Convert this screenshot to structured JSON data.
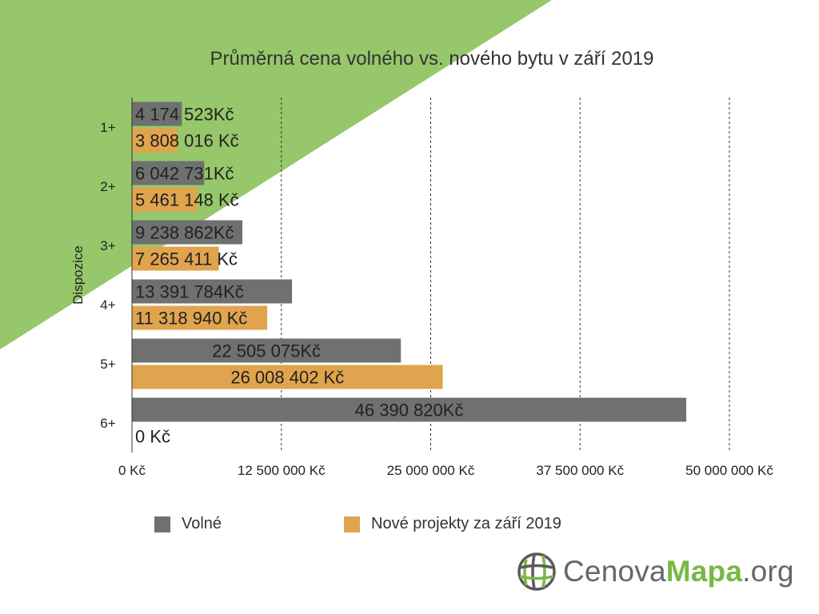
{
  "colors": {
    "background_shape": "#96c76a",
    "volne": "#6e716f",
    "nove": "#e0a44e",
    "logo_green": "#79b845",
    "logo_gray": "#666666"
  },
  "chart_data": {
    "type": "bar",
    "orientation": "horizontal",
    "title": "Průměrná cena volného vs. nového bytu v září 2019",
    "ylabel": "Dispozice",
    "xlabel": "",
    "xlim": [
      0,
      50000000
    ],
    "x_ticks": [
      0,
      12500000,
      25000000,
      37500000,
      50000000
    ],
    "x_tick_labels": [
      "0 Kč",
      "12 500 000 Kč",
      "25 000 000 Kč",
      "37 500 000 Kč",
      "50 000 000 Kč"
    ],
    "grid": "vertical dashed",
    "legend_position": "bottom",
    "categories": [
      "1+",
      "2+",
      "3+",
      "4+",
      "5+",
      "6+"
    ],
    "series": [
      {
        "name": "Volné",
        "values": [
          4174523,
          6042731,
          9238862,
          13391784,
          22505075,
          46390820
        ],
        "labels": [
          "4 174 523Kč",
          "6 042 731Kč",
          "9 238 862Kč",
          "13 391 784Kč",
          "22 505 075Kč",
          "46 390 820Kč"
        ]
      },
      {
        "name": "Nové projekty za září 2019",
        "values": [
          3808016,
          5461148,
          7265411,
          11318940,
          26008402,
          0
        ],
        "labels": [
          "3 808 016 Kč",
          "5 461 148 Kč",
          "7 265 411 Kč",
          "11 318 940 Kč",
          "26 008 402 Kč",
          "0 Kč"
        ]
      }
    ]
  },
  "logo": {
    "part1": "Cenova",
    "part2": "Mapa",
    "part3": ".org",
    "icon": "globe-icon"
  }
}
